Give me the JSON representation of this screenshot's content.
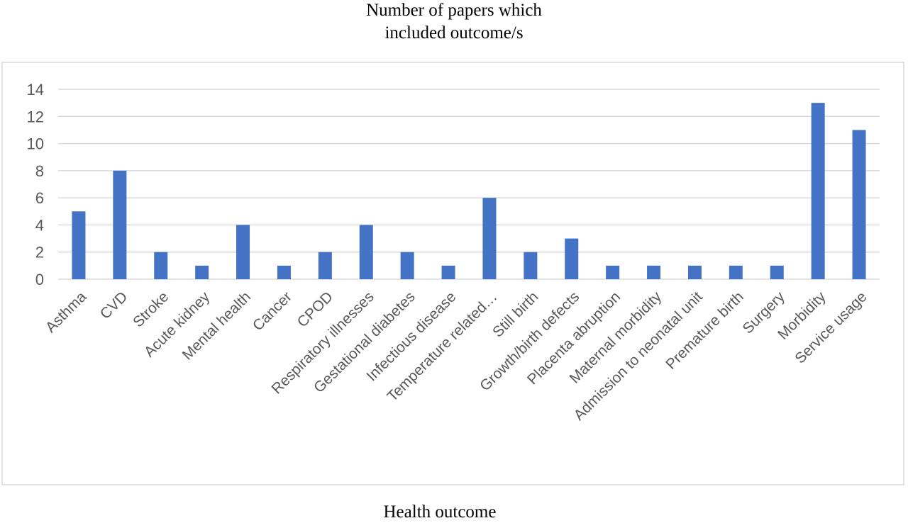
{
  "chart_data": {
    "type": "bar",
    "title_lines": [
      "Number of papers which",
      "included outcome/s"
    ],
    "xlabel": "Health outcome",
    "ylabel": "",
    "ylim": [
      0,
      14
    ],
    "yticks": [
      0,
      2,
      4,
      6,
      8,
      10,
      12,
      14
    ],
    "grid": true,
    "legend": "none",
    "bar_color": "#4472C4",
    "grid_color": "#D9D9D9",
    "categories": [
      "Asthma",
      "CVD",
      "Stroke",
      "Acute kidney",
      "Mental health",
      "Cancer",
      "CPOD",
      "Respiratory illnesses",
      "Gestational diabetes",
      "Infectious disease",
      "Temperature related…",
      "Still birth",
      "Growth/birth defects",
      "Placenta abruption",
      "Maternal morbidity",
      "Admission to neonatal unit",
      "Premature birth",
      "Surgery",
      "Morbidity",
      "Service usage"
    ],
    "values": [
      5,
      8,
      2,
      1,
      4,
      1,
      2,
      4,
      2,
      1,
      6,
      2,
      3,
      1,
      1,
      1,
      1,
      1,
      13,
      11
    ]
  }
}
